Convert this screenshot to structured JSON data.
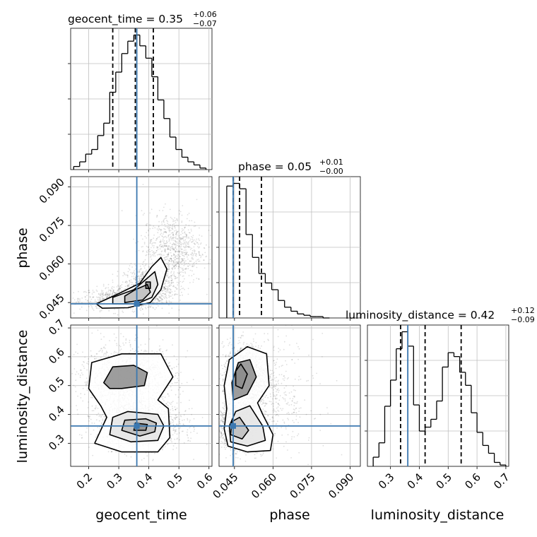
{
  "colors": {
    "truth": "#3b78b0",
    "grid": "#bfbfbf",
    "hist": "#000000",
    "contour": "#000000"
  },
  "chart_data": {
    "type": "corner",
    "grid": true,
    "parameters": [
      "geocent_time",
      "phase",
      "luminosity_distance"
    ],
    "truths": {
      "geocent_time": 0.36,
      "phase": 0.0445,
      "luminosity_distance": 0.36
    },
    "titles": {
      "geocent_time": {
        "label": "geocent_time = 0.35",
        "plus": "+0.06",
        "minus": "−0.07"
      },
      "phase": {
        "label": "phase = 0.05",
        "plus": "+0.01",
        "minus": "−0.00"
      },
      "luminosity_distance": {
        "label": "luminosity_distance = 0.42",
        "plus": "+0.12",
        "minus": "−0.09"
      }
    },
    "axes": {
      "geocent_time": {
        "label": "geocent_time",
        "range": [
          0.14,
          0.61
        ],
        "ticks": [
          "0.2",
          "0.3",
          "0.4",
          "0.5",
          "0.6"
        ]
      },
      "phase": {
        "label": "phase",
        "range": [
          0.039,
          0.094
        ],
        "ticks": [
          "0.045",
          "0.060",
          "0.075",
          "0.090"
        ]
      },
      "luminosity_distance": {
        "label": "luminosity_distance",
        "range": [
          0.22,
          0.71
        ],
        "ticks": [
          "0.3",
          "0.4",
          "0.5",
          "0.6",
          "0.7"
        ]
      }
    },
    "quantiles": {
      "geocent_time": [
        0.28,
        0.355,
        0.415
      ],
      "phase": [
        0.0445,
        0.047,
        0.0555
      ],
      "luminosity_distance": [
        0.335,
        0.42,
        0.545
      ]
    },
    "histograms": {
      "geocent_time": {
        "bin_edges": [
          0.15,
          0.17,
          0.19,
          0.21,
          0.23,
          0.25,
          0.27,
          0.29,
          0.31,
          0.33,
          0.35,
          0.37,
          0.39,
          0.41,
          0.43,
          0.45,
          0.47,
          0.49,
          0.51,
          0.53,
          0.55,
          0.57,
          0.59
        ],
        "counts": [
          2,
          5,
          10,
          13,
          22,
          30,
          50,
          63,
          75,
          83,
          87,
          80,
          72,
          60,
          45,
          33,
          21,
          13,
          8,
          5,
          3,
          1
        ]
      },
      "phase": {
        "bin_edges": [
          0.042,
          0.0445,
          0.047,
          0.0495,
          0.052,
          0.0545,
          0.057,
          0.0595,
          0.062,
          0.0645,
          0.067,
          0.0695,
          0.072,
          0.0745,
          0.077,
          0.0795,
          0.082
        ],
        "counts": [
          98,
          100,
          96,
          62,
          45,
          33,
          26,
          21,
          13,
          8,
          5,
          3,
          2,
          1,
          1,
          0
        ]
      },
      "luminosity_distance": {
        "bin_edges": [
          0.24,
          0.26,
          0.28,
          0.3,
          0.32,
          0.34,
          0.36,
          0.38,
          0.4,
          0.42,
          0.44,
          0.46,
          0.48,
          0.5,
          0.52,
          0.54,
          0.56,
          0.58,
          0.6,
          0.62,
          0.64,
          0.66,
          0.68,
          0.7
        ],
        "counts": [
          7,
          18,
          46,
          66,
          90,
          103,
          92,
          47,
          27,
          30,
          36,
          50,
          76,
          87,
          84,
          72,
          62,
          41,
          26,
          16,
          10,
          3,
          1
        ]
      }
    },
    "density_2d": [
      {
        "x": "geocent_time",
        "y": "phase",
        "components": [
          {
            "mean": [
              0.31,
              0.0465
            ],
            "sd": [
              0.07,
              0.0022
            ],
            "n": 700
          },
          {
            "mean": [
              0.4,
              0.0515
            ],
            "sd": [
              0.04,
              0.0035
            ],
            "n": 900
          },
          {
            "mean": [
              0.48,
              0.066
            ],
            "sd": [
              0.05,
              0.007
            ],
            "n": 800
          }
        ],
        "contours": [
          [
            [
              0.245,
              0.0428
            ],
            [
              0.33,
              0.043
            ],
            [
              0.405,
              0.045
            ],
            [
              0.44,
              0.05
            ],
            [
              0.46,
              0.058
            ],
            [
              0.44,
              0.0625
            ],
            [
              0.41,
              0.059
            ],
            [
              0.37,
              0.0525
            ],
            [
              0.3,
              0.0485
            ],
            [
              0.225,
              0.0445
            ]
          ],
          [
            [
              0.28,
              0.0445
            ],
            [
              0.36,
              0.0445
            ],
            [
              0.41,
              0.047
            ],
            [
              0.43,
              0.052
            ],
            [
              0.42,
              0.057
            ],
            [
              0.39,
              0.054
            ],
            [
              0.35,
              0.05
            ],
            [
              0.28,
              0.047
            ]
          ],
          [
            [
              0.32,
              0.045
            ],
            [
              0.38,
              0.046
            ],
            [
              0.405,
              0.049
            ],
            [
              0.395,
              0.052
            ],
            [
              0.355,
              0.05
            ],
            [
              0.32,
              0.0475
            ]
          ],
          [
            [
              0.39,
              0.0505
            ],
            [
              0.405,
              0.0505
            ],
            [
              0.405,
              0.053
            ],
            [
              0.39,
              0.053
            ]
          ]
        ]
      },
      {
        "x": "geocent_time",
        "y": "luminosity_distance",
        "components": [
          {
            "mean": [
              0.37,
              0.365
            ],
            "sd": [
              0.07,
              0.04
            ],
            "n": 1600
          },
          {
            "mean": [
              0.33,
              0.525
            ],
            "sd": [
              0.08,
              0.055
            ],
            "n": 1300
          }
        ],
        "contours": [
          [
            [
              0.22,
              0.3
            ],
            [
              0.31,
              0.27
            ],
            [
              0.43,
              0.27
            ],
            [
              0.47,
              0.32
            ],
            [
              0.465,
              0.42
            ],
            [
              0.43,
              0.45
            ],
            [
              0.48,
              0.53
            ],
            [
              0.44,
              0.61
            ],
            [
              0.31,
              0.61
            ],
            [
              0.21,
              0.58
            ],
            [
              0.2,
              0.49
            ],
            [
              0.24,
              0.43
            ],
            [
              0.26,
              0.39
            ]
          ],
          [
            [
              0.27,
              0.33
            ],
            [
              0.34,
              0.305
            ],
            [
              0.43,
              0.31
            ],
            [
              0.45,
              0.36
            ],
            [
              0.43,
              0.4
            ],
            [
              0.33,
              0.41
            ],
            [
              0.28,
              0.39
            ]
          ],
          [
            [
              0.31,
              0.345
            ],
            [
              0.37,
              0.325
            ],
            [
              0.42,
              0.34
            ],
            [
              0.425,
              0.37
            ],
            [
              0.39,
              0.385
            ],
            [
              0.32,
              0.38
            ]
          ],
          [
            [
              0.35,
              0.345
            ],
            [
              0.39,
              0.345
            ],
            [
              0.395,
              0.365
            ],
            [
              0.355,
              0.37
            ]
          ],
          [
            [
              0.25,
              0.51
            ],
            [
              0.28,
              0.565
            ],
            [
              0.35,
              0.57
            ],
            [
              0.395,
              0.545
            ],
            [
              0.385,
              0.5
            ],
            [
              0.31,
              0.49
            ],
            [
              0.27,
              0.49
            ]
          ]
        ]
      },
      {
        "x": "phase",
        "y": "luminosity_distance",
        "components": [
          {
            "mean": [
              0.047,
              0.36
            ],
            "sd": [
              0.004,
              0.04
            ],
            "n": 1600
          },
          {
            "mean": [
              0.0495,
              0.53
            ],
            "sd": [
              0.0045,
              0.055
            ],
            "n": 1300
          },
          {
            "mean": [
              0.058,
              0.45
            ],
            "sd": [
              0.009,
              0.11
            ],
            "n": 500
          }
        ],
        "contours": [
          [
            [
              0.0425,
              0.29
            ],
            [
              0.05,
              0.27
            ],
            [
              0.059,
              0.275
            ],
            [
              0.06,
              0.33
            ],
            [
              0.056,
              0.4
            ],
            [
              0.054,
              0.44
            ],
            [
              0.0585,
              0.5
            ],
            [
              0.0575,
              0.61
            ],
            [
              0.05,
              0.635
            ],
            [
              0.043,
              0.59
            ],
            [
              0.041,
              0.5
            ],
            [
              0.042,
              0.42
            ],
            [
              0.041,
              0.35
            ]
          ],
          [
            [
              0.0435,
              0.305
            ],
            [
              0.05,
              0.29
            ],
            [
              0.057,
              0.31
            ],
            [
              0.056,
              0.36
            ],
            [
              0.051,
              0.43
            ],
            [
              0.0455,
              0.41
            ],
            [
              0.043,
              0.36
            ]
          ],
          [
            [
              0.0435,
              0.33
            ],
            [
              0.048,
              0.315
            ],
            [
              0.0505,
              0.345
            ],
            [
              0.047,
              0.39
            ],
            [
              0.044,
              0.375
            ]
          ],
          [
            [
              0.0445,
              0.45
            ],
            [
              0.05,
              0.47
            ],
            [
              0.0535,
              0.53
            ],
            [
              0.051,
              0.59
            ],
            [
              0.0465,
              0.58
            ],
            [
              0.044,
              0.51
            ]
          ],
          [
            [
              0.0455,
              0.5
            ],
            [
              0.048,
              0.49
            ],
            [
              0.05,
              0.54
            ],
            [
              0.0475,
              0.575
            ],
            [
              0.0455,
              0.55
            ]
          ]
        ]
      }
    ]
  }
}
